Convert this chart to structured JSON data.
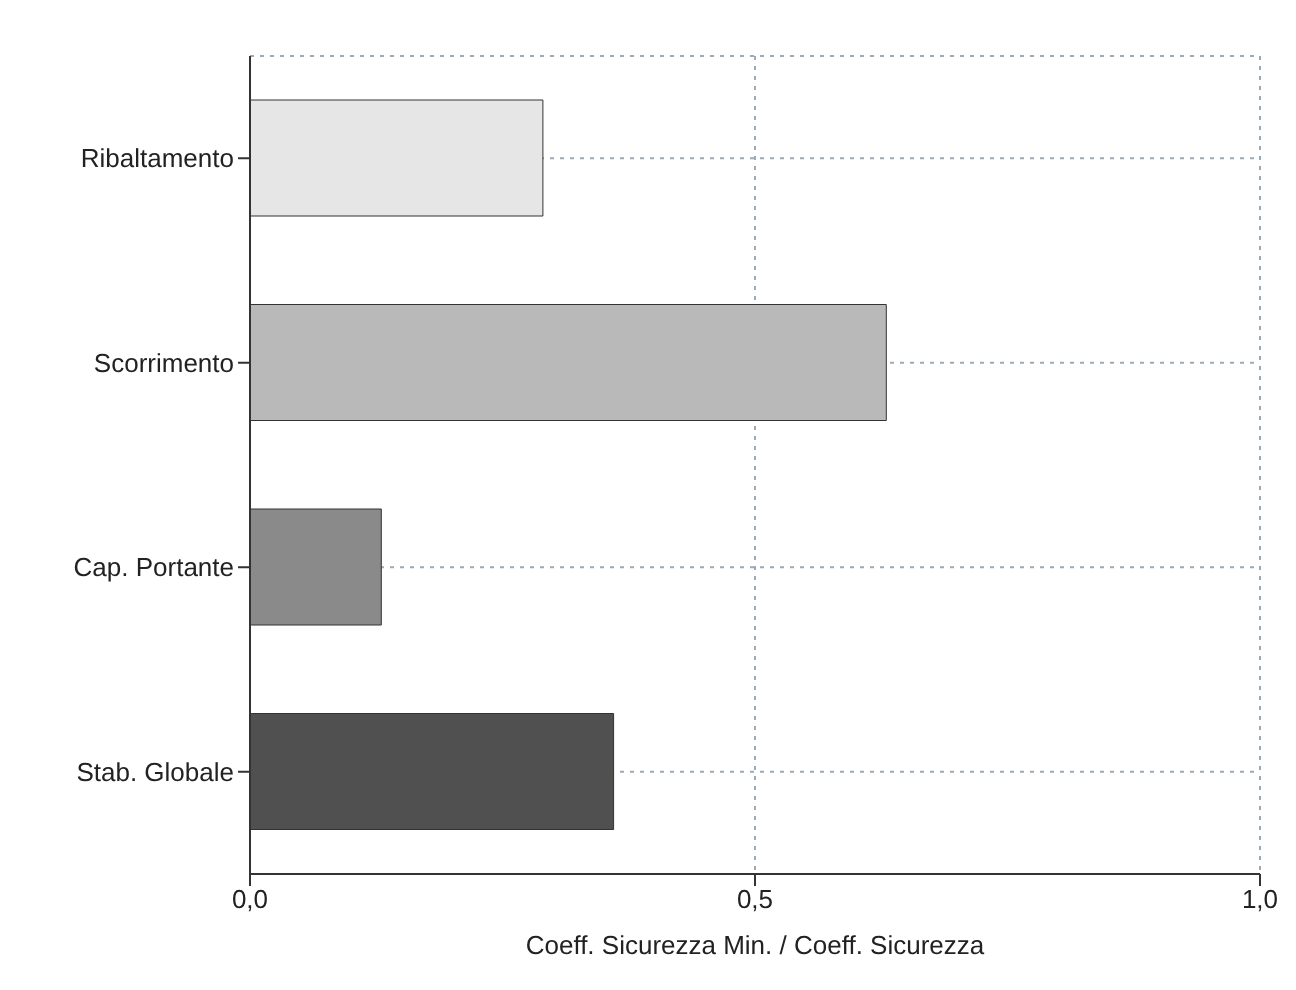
{
  "chart_data": {
    "type": "bar",
    "orientation": "horizontal",
    "categories": [
      "Ribaltamento",
      "Scorrimento",
      "Cap. Portante",
      "Stab. Globale"
    ],
    "values": [
      0.29,
      0.63,
      0.13,
      0.36
    ],
    "colors": [
      "#e6e6e6",
      "#b9b9b9",
      "#8a8a8a",
      "#505050"
    ],
    "xlim": [
      0,
      1
    ],
    "xticks": [
      {
        "value": 0,
        "label": "0,0"
      },
      {
        "value": 0.5,
        "label": "0,5"
      },
      {
        "value": 1,
        "label": "1,0"
      }
    ],
    "xlabel": "Coeff. Sicurezza Min. / Coeff. Sicurezza",
    "grid": true
  }
}
